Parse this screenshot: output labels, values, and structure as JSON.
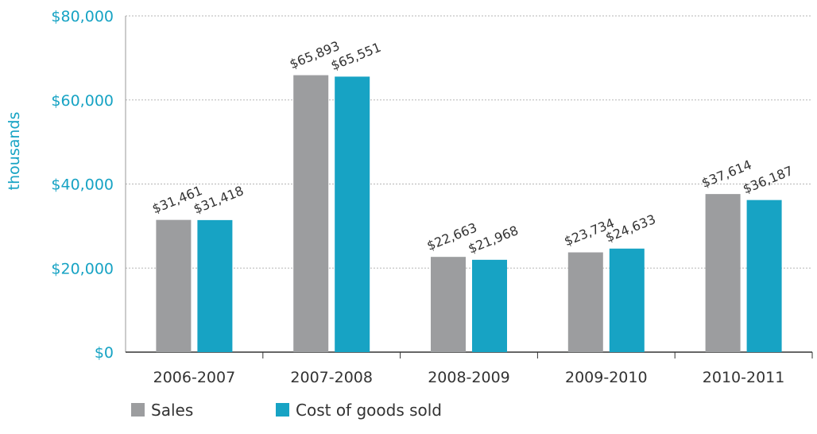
{
  "chart_data": {
    "type": "bar",
    "title": "",
    "xlabel": "",
    "ylabel": "thousands",
    "ylim": [
      0,
      80000
    ],
    "yticks": [
      0,
      20000,
      40000,
      60000,
      80000
    ],
    "ytick_labels": [
      "$0",
      "$20,000",
      "$40,000",
      "$60,000",
      "$80,000"
    ],
    "categories": [
      "2006-2007",
      "2007-2008",
      "2008-2009",
      "2009-2010",
      "2010-2011"
    ],
    "series": [
      {
        "name": "Sales",
        "color": "#9c9d9f",
        "values": [
          31461,
          65893,
          22663,
          23734,
          37614
        ],
        "labels": [
          "$31,461",
          "$65,893",
          "$22,663",
          "$23,734",
          "$37,614"
        ]
      },
      {
        "name": "Cost of goods sold",
        "color": "#17a3c4",
        "values": [
          31418,
          65551,
          21968,
          24633,
          36187
        ],
        "labels": [
          "$31,418",
          "$65,551",
          "$21,968",
          "$24,633",
          "$36,187"
        ]
      }
    ],
    "grid": true,
    "legend_position": "bottom-left",
    "accent_color": "#17a3c4"
  }
}
